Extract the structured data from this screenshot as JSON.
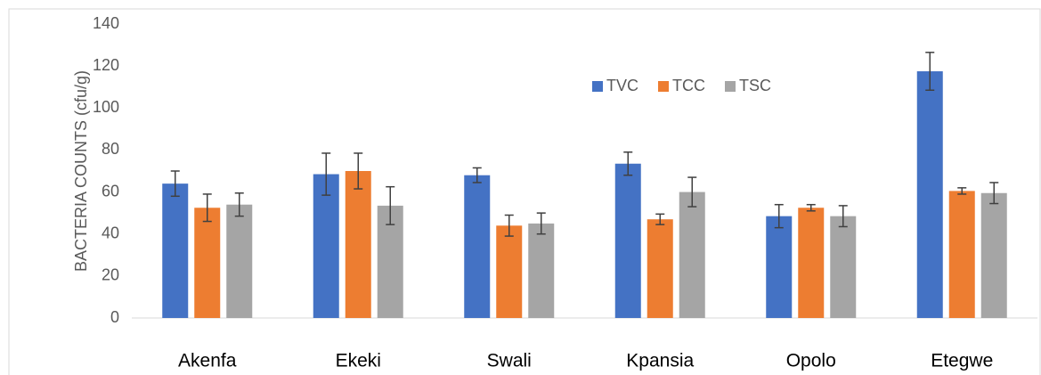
{
  "chart_data": {
    "type": "bar",
    "y_label": "BACTERIA COUNTS (cfu/g)",
    "categories": [
      "Akenfa",
      "Ekeki",
      "Swali",
      "Kpansia",
      "Opolo",
      "Etegwe"
    ],
    "series": [
      {
        "name": "TVC",
        "color": "#4472c4",
        "values": [
          64,
          68.5,
          68,
          73.5,
          48.5,
          117.5
        ],
        "errors": [
          6,
          10,
          3.5,
          5.5,
          5.5,
          9
        ]
      },
      {
        "name": "TCC",
        "color": "#ed7d31",
        "values": [
          52.5,
          70,
          44,
          47,
          52.5,
          60.5
        ],
        "errors": [
          6.5,
          8.5,
          5,
          2.5,
          1.5,
          1.5
        ]
      },
      {
        "name": "TSC",
        "color": "#a5a5a5",
        "values": [
          54,
          53.5,
          45,
          60,
          48.5,
          59.5
        ],
        "errors": [
          5.5,
          9,
          5,
          7,
          5,
          5
        ]
      }
    ],
    "ylim": [
      0,
      140
    ],
    "yticks": [
      0,
      20,
      40,
      60,
      80,
      100,
      120,
      140
    ],
    "legend": "top"
  }
}
